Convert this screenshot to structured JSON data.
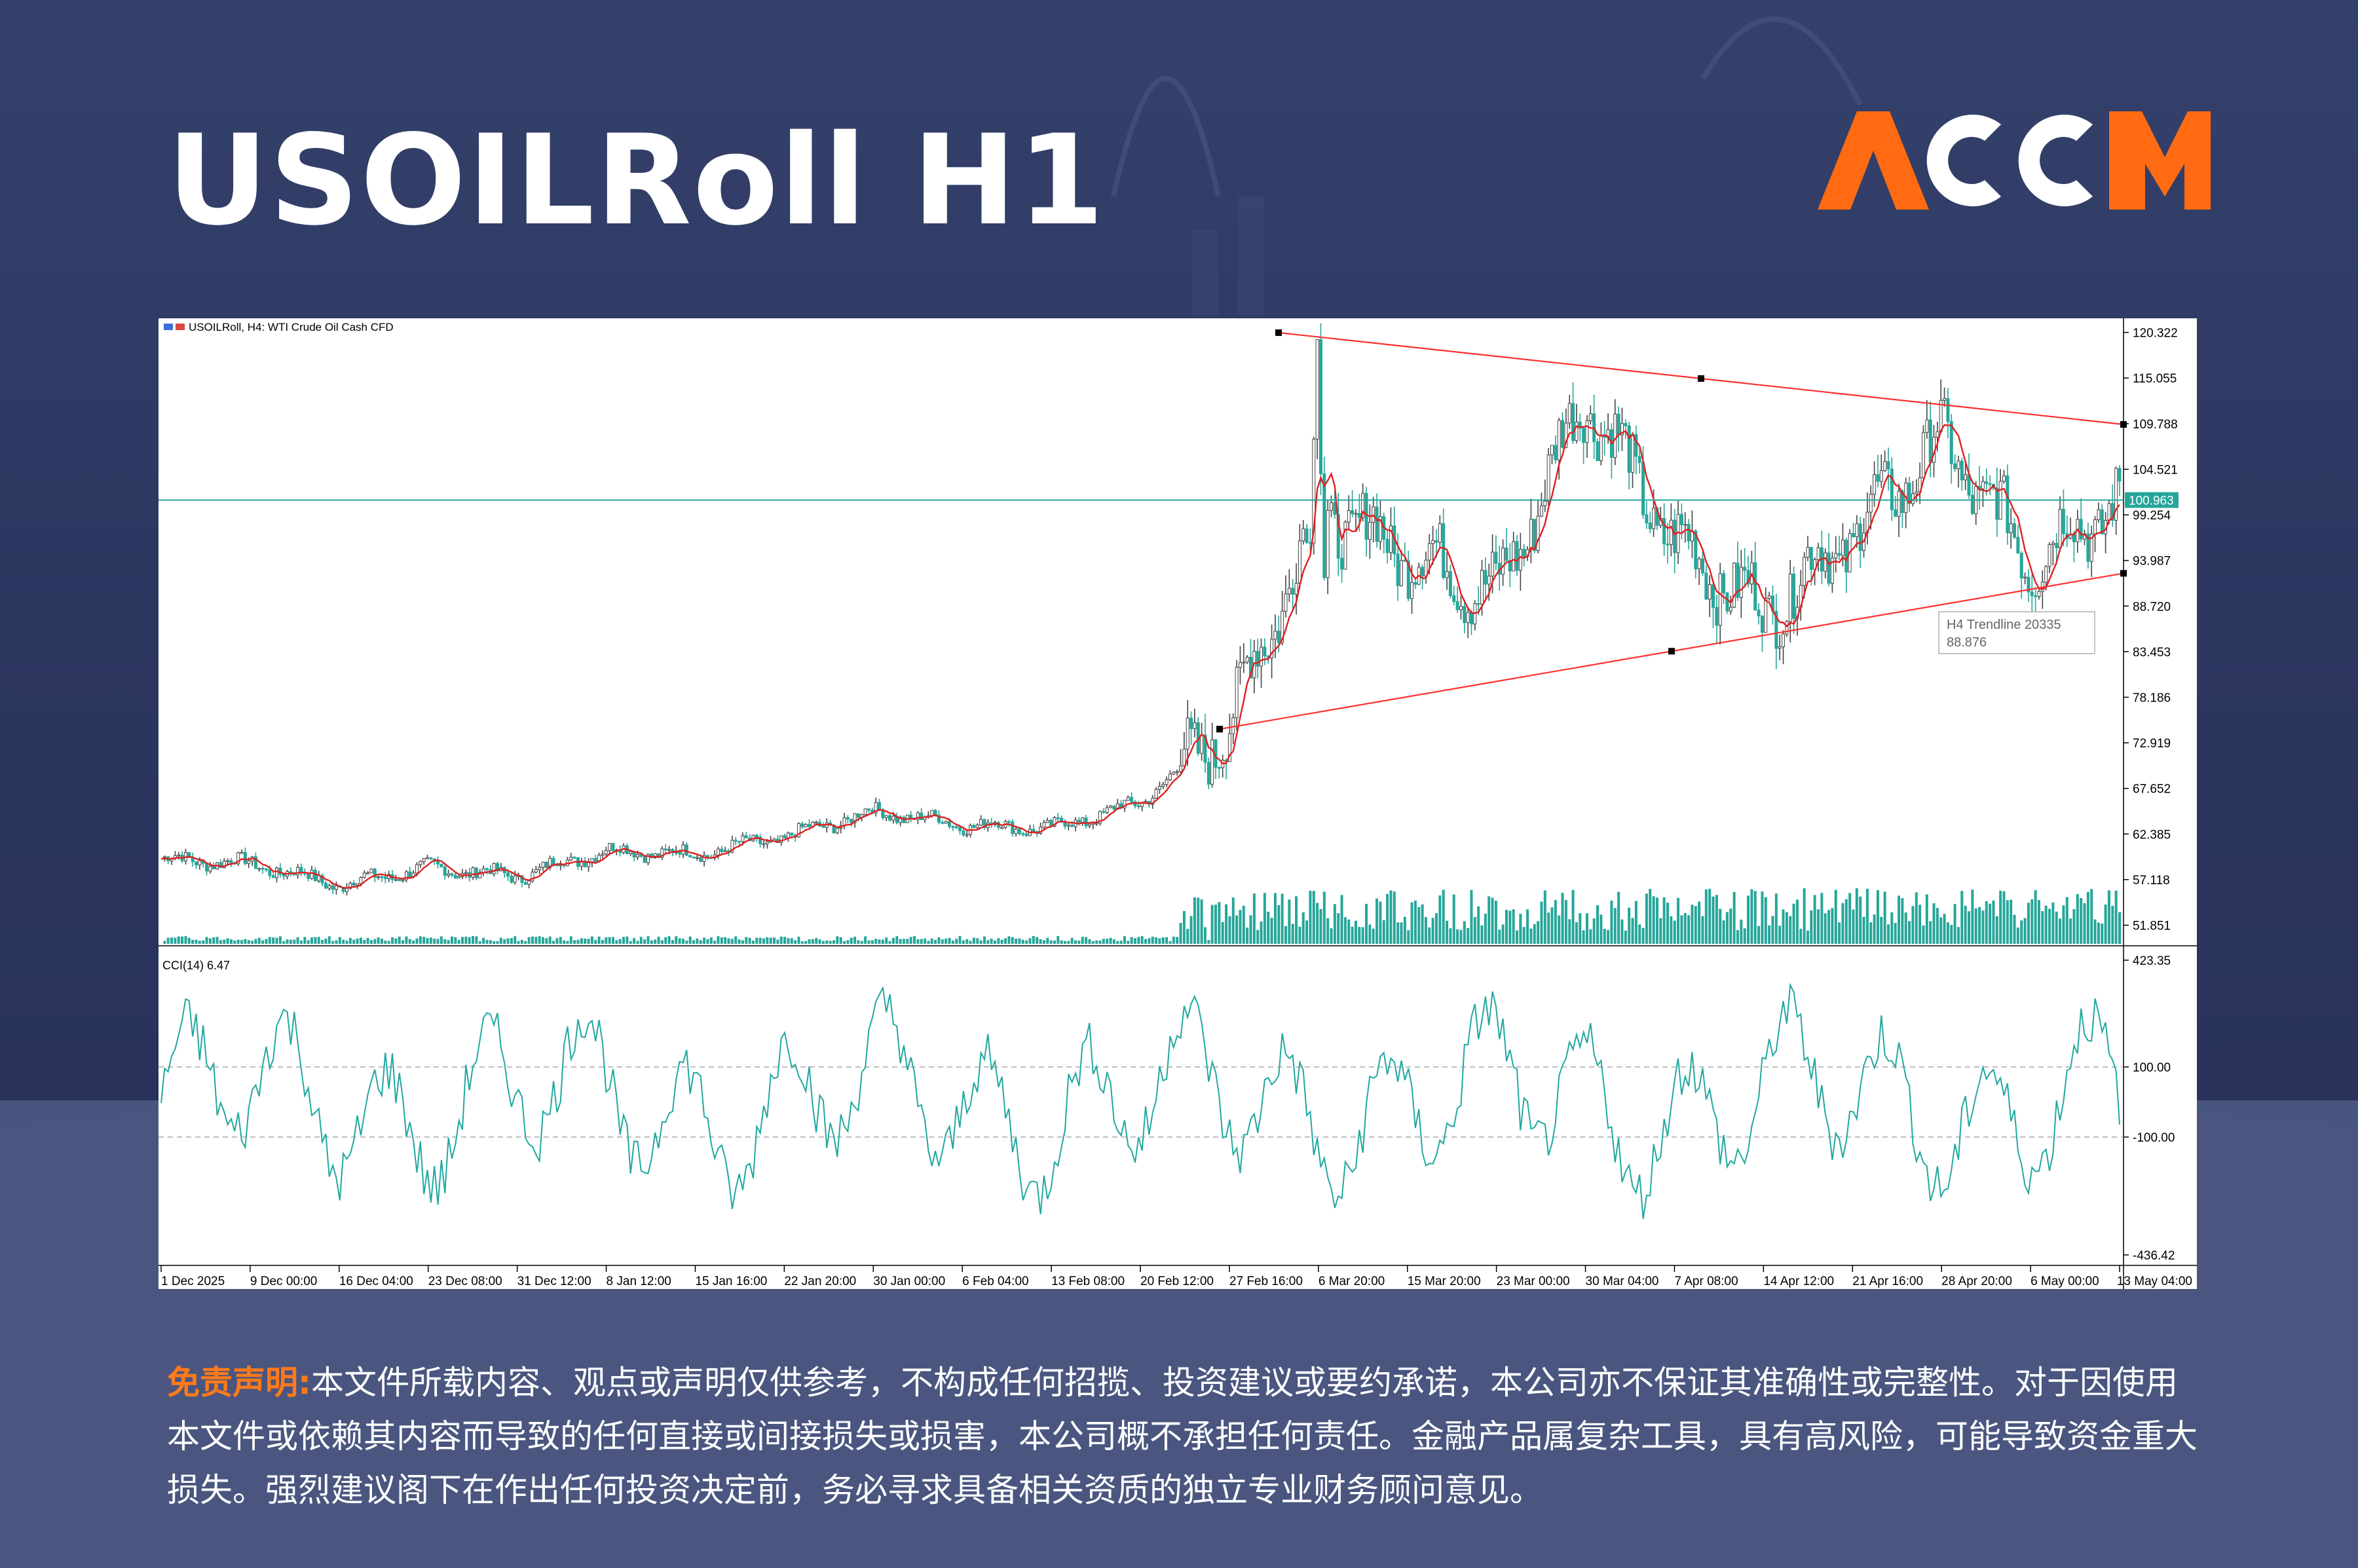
{
  "page": {
    "title": "USOILRoll H1",
    "logo_text": "ACCM",
    "accent_color": "#ff6a13",
    "disclaimer_label": "免责声明:",
    "disclaimer_text": "本文件所载内容、观点或声明仅供参考，不构成任何招揽、投资建议或要约承诺，本公司亦不保证其准确性或完整性。对于因使用本文件或依赖其内容而导致的任何直接或间接损失或损害，本公司概不承担任何责任。金融产品属复杂工具，具有高风险，可能导致资金重大损失。强烈建议阁下在作出任何投资决定前，务必寻求具备相关资质的独立专业财务顾问意见。"
  },
  "chart_data": {
    "type": "candlestick",
    "header": "USOILRoll, H4:  WTI Crude Oil Cash CFD",
    "price_axis_ticks": [
      "120.322",
      "115.055",
      "109.788",
      "104.521",
      "99.254",
      "93.987",
      "88.720",
      "83.453",
      "78.186",
      "72.919",
      "67.652",
      "62.385",
      "57.118",
      "51.851"
    ],
    "ylim": [
      49.7,
      121.2
    ],
    "x_labels": [
      "1 Dec 2025",
      "9 Dec 00:00",
      "16 Dec 04:00",
      "23 Dec 08:00",
      "31 Dec 12:00",
      "8 Jan 12:00",
      "15 Jan 16:00",
      "22 Jan 20:00",
      "30 Jan 00:00",
      "6 Feb 04:00",
      "13 Feb 08:00",
      "20 Feb 12:00",
      "27 Feb 16:00",
      "6 Mar 20:00",
      "15 Mar 20:00",
      "23 Mar 00:00",
      "30 Mar 04:00",
      "7 Apr 08:00",
      "14 Apr 12:00",
      "21 Apr 16:00",
      "28 Apr 20:00",
      "6 May 00:00",
      "13 May 04:00"
    ],
    "approx_close_per_label": [
      59.5,
      59.0,
      56.5,
      58.5,
      57.5,
      60.5,
      60.0,
      62.0,
      65.0,
      63.5,
      63.0,
      66.0,
      75.0,
      100.0,
      95.0,
      90.0,
      113.0,
      96.0,
      88.0,
      97.0,
      108.0,
      94.0,
      101.0
    ],
    "current_price_label": "100.963",
    "current_price": 100.963,
    "trendlines": [
      {
        "points": [
          [
            0.57,
            120.3
          ],
          [
            1.0,
            109.7
          ]
        ],
        "color": "#ff3030"
      },
      {
        "points": [
          [
            0.54,
            74.5
          ],
          [
            1.0,
            92.5
          ]
        ],
        "color": "#ff3030"
      }
    ],
    "tooltip": {
      "line1": "H4 Trendline 20335",
      "line2": "88.876"
    },
    "indicator": {
      "name": "CCI(14) 6.47",
      "axis_ticks": [
        "423.35",
        "100.00",
        "-100.00",
        "-436.42"
      ],
      "ylim": [
        -436.42,
        423.35
      ],
      "levels": [
        100,
        -100
      ],
      "color": "#20a8a0"
    },
    "colors": {
      "ma": "#e02020",
      "candles": "#009688",
      "volume": "#26a69a",
      "hline": "#26a69a"
    }
  }
}
